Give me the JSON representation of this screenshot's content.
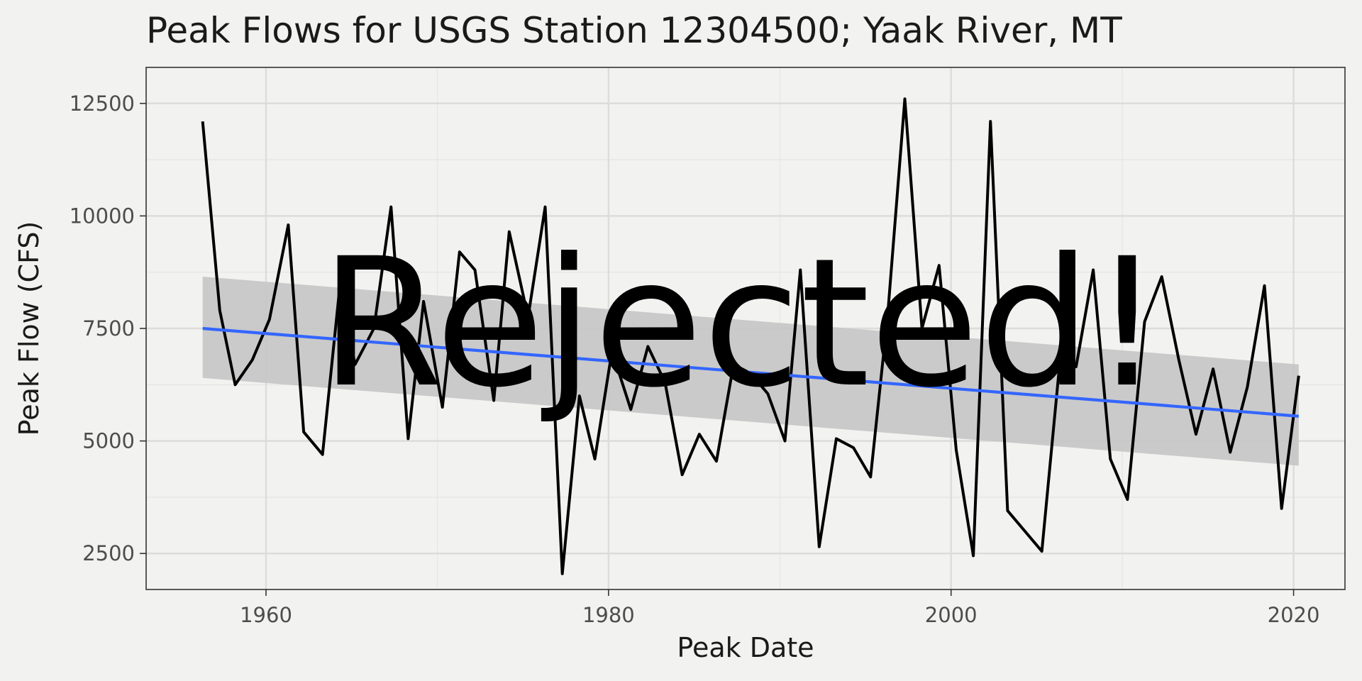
{
  "chart_data": {
    "type": "line",
    "title": "Peak Flows for USGS Station 12304500; Yaak River, MT",
    "xlabel": "Peak Date",
    "ylabel": "Peak Flow (CFS)",
    "xlim": [
      1953,
      2023
    ],
    "ylim": [
      1700,
      13300
    ],
    "x_ticks": [
      1960,
      1980,
      2000,
      2020
    ],
    "y_ticks": [
      2500,
      5000,
      7500,
      10000,
      12500
    ],
    "grid": true,
    "legend": "none",
    "series": [
      {
        "style": "line",
        "color": "#000000",
        "x": [
          1956.3,
          1957.3,
          1958.2,
          1959.2,
          1960.2,
          1961.3,
          1962.2,
          1963.3,
          1964.3,
          1965.2,
          1966.3,
          1967.3,
          1968.3,
          1969.2,
          1970.3,
          1971.3,
          1972.2,
          1973.3,
          1974.2,
          1975.3,
          1976.3,
          1977.3,
          1978.3,
          1979.2,
          1980.2,
          1981.3,
          1982.3,
          1983.3,
          1984.3,
          1985.3,
          1986.3,
          1987.3,
          1988.3,
          1989.3,
          1990.3,
          1991.2,
          1992.3,
          1993.3,
          1994.3,
          1995.3,
          1996.3,
          1997.3,
          1998.3,
          1999.3,
          2000.3,
          2001.3,
          2002.3,
          2003.3,
          2004.3,
          2005.3,
          2006.3,
          2007.3,
          2008.3,
          2009.3,
          2010.3,
          2011.3,
          2012.3,
          2013.3,
          2014.3,
          2015.3,
          2016.3,
          2017.3,
          2018.3,
          2019.3,
          2020.3
        ],
        "values": [
          12100,
          7900,
          6250,
          6800,
          7700,
          9800,
          5200,
          4700,
          8400,
          6700,
          7500,
          10200,
          5050,
          8100,
          5750,
          9200,
          8800,
          5900,
          9650,
          7750,
          10200,
          2050,
          6000,
          4600,
          7000,
          5700,
          7100,
          6300,
          4250,
          5150,
          4550,
          6700,
          6500,
          6050,
          5000,
          8800,
          2650,
          5050,
          4850,
          4200,
          7800,
          12600,
          7500,
          8900,
          4800,
          2450,
          12100,
          3450,
          3000,
          2550,
          6550,
          6650,
          8800,
          4600,
          3700,
          7650,
          8650,
          6800,
          5150,
          6600,
          4750,
          6200,
          8450,
          3500,
          6450
        ]
      },
      {
        "style": "trend",
        "color": "#3366ff",
        "x": [
          1956.3,
          2020.3
        ],
        "values": [
          7500,
          5550
        ],
        "ci_lower": [
          6400,
          4450
        ],
        "ci_upper": [
          8650,
          6700
        ],
        "ci_color": "#c5c5c5"
      }
    ],
    "annotations": [
      "Rejected!"
    ]
  }
}
